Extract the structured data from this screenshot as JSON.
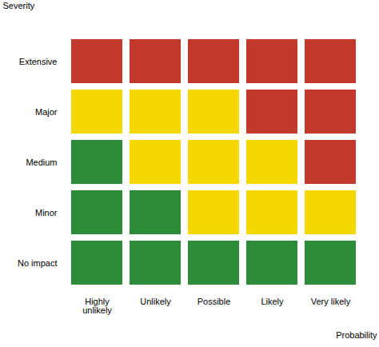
{
  "chart_data": {
    "type": "heatmap",
    "x_label": "Probability",
    "y_label": "Severity",
    "categories": [
      "Highly\nunlikely",
      "Unlikely",
      "Possible",
      "Likely",
      "Very likely"
    ],
    "y_categories": [
      "No impact",
      "Minor",
      "Medium",
      "Major",
      "Extensive"
    ],
    "cell_colors": [
      [
        "#2e8b3a",
        "#2e8b3a",
        "#2e8b3a",
        "#2e8b3a",
        "#2e8b3a"
      ],
      [
        "#2e8b3a",
        "#2e8b3a",
        "#f5d800",
        "#f5d800",
        "#f5d800"
      ],
      [
        "#2e8b3a",
        "#f5d800",
        "#f5d800",
        "#f5d800",
        "#c0392b"
      ],
      [
        "#f5d800",
        "#f5d800",
        "#f5d800",
        "#c0392b",
        "#c0392b"
      ],
      [
        "#c0392b",
        "#c0392b",
        "#c0392b",
        "#c0392b",
        "#c0392b"
      ]
    ],
    "grid": false
  }
}
